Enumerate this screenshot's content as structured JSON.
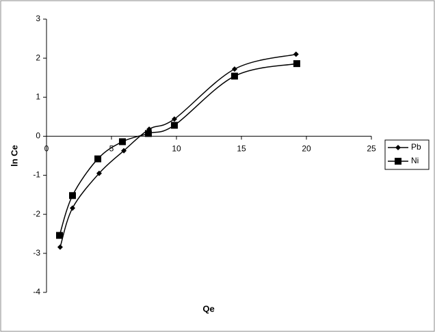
{
  "chart_data": {
    "type": "scatter",
    "x_label": "Qe",
    "y_label": "ln Ce",
    "xlim": [
      0,
      25
    ],
    "xticks": [
      0,
      5,
      10,
      15,
      20,
      25
    ],
    "ylim": [
      -4,
      3
    ],
    "yticks": [
      -4,
      -3,
      -2,
      -1,
      0,
      1,
      2,
      3
    ],
    "smooth": true,
    "legend": "right",
    "series": [
      {
        "name": "Pb",
        "color": "#000000",
        "marker": "diamond",
        "x": [
          1.05,
          2.0,
          4.05,
          5.95,
          7.9,
          9.84,
          14.47,
          19.2
        ],
        "values": [
          -2.84,
          -1.84,
          -0.95,
          -0.37,
          0.18,
          0.44,
          1.72,
          2.1
        ]
      },
      {
        "name": "Ni",
        "color": "#000000",
        "marker": "square",
        "x": [
          1.0,
          2.0,
          3.95,
          5.84,
          7.84,
          9.84,
          14.47,
          19.26
        ],
        "values": [
          -2.54,
          -1.52,
          -0.58,
          -0.14,
          0.07,
          0.28,
          1.54,
          1.86
        ]
      }
    ]
  }
}
